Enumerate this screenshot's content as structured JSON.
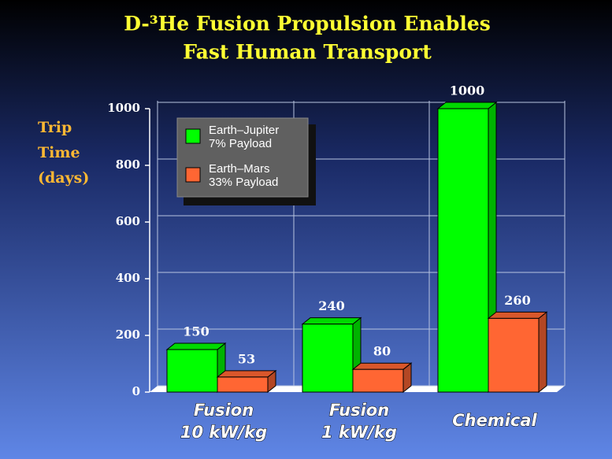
{
  "chart_data": {
    "type": "bar3d",
    "title": [
      "D-³He Fusion Propulsion Enables",
      "Fast Human Transport"
    ],
    "ylabel": [
      "Trip",
      "Time",
      "(days)"
    ],
    "categories": [
      [
        "Fusion",
        "10 kW/kg"
      ],
      [
        "Fusion",
        "1 kW/kg"
      ],
      [
        "Chemical"
      ]
    ],
    "series": [
      {
        "name": "Earth–Jupiter",
        "description": "7% Payload",
        "color": "#00ff00",
        "values": [
          150,
          240,
          1000
        ]
      },
      {
        "name": "Earth–Mars",
        "description": "33% Payload",
        "color": "#ff6633",
        "values": [
          53,
          80,
          260
        ]
      }
    ],
    "ylim": [
      0,
      1000
    ],
    "yticks": [
      0,
      200,
      400,
      600,
      800,
      1000
    ],
    "grid": true,
    "legend": "upper left"
  }
}
